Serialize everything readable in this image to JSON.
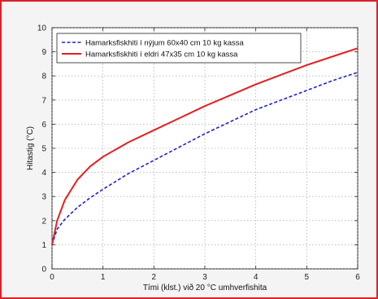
{
  "chart_data": {
    "type": "line",
    "title": "",
    "xlabel": "Tími (klst.) við 20 °C umhverfishita",
    "ylabel": "Hitastig (°C)",
    "xlim": [
      0,
      6
    ],
    "ylim": [
      0,
      10
    ],
    "xticks": [
      0,
      1,
      2,
      3,
      4,
      5,
      6
    ],
    "yticks": [
      0,
      1,
      2,
      3,
      4,
      5,
      6,
      7,
      8,
      9,
      10
    ],
    "grid": true,
    "legend_position": "top-left",
    "series": [
      {
        "name": "Hamarksfiskhiti í nýjum 60x40 cm 10 kg kassa",
        "color": "#2020d0",
        "style": "dashed",
        "x": [
          0,
          0.1,
          0.25,
          0.5,
          0.75,
          1,
          1.5,
          2,
          2.5,
          3,
          3.5,
          4,
          4.5,
          5,
          5.5,
          6
        ],
        "y": [
          1.0,
          1.65,
          2.05,
          2.55,
          2.95,
          3.3,
          3.95,
          4.5,
          5.05,
          5.6,
          6.1,
          6.6,
          7.0,
          7.4,
          7.8,
          8.15
        ]
      },
      {
        "name": "Hamarksfiskhiti í eldri 47x35 cm 10 kg kassa",
        "color": "#e02020",
        "style": "solid",
        "x": [
          0,
          0.1,
          0.25,
          0.5,
          0.75,
          1,
          1.5,
          2,
          2.5,
          3,
          3.5,
          4,
          4.5,
          5,
          5.5,
          6
        ],
        "y": [
          1.0,
          2.0,
          2.85,
          3.7,
          4.25,
          4.65,
          5.25,
          5.75,
          6.25,
          6.75,
          7.2,
          7.65,
          8.05,
          8.45,
          8.8,
          9.15
        ]
      }
    ]
  }
}
